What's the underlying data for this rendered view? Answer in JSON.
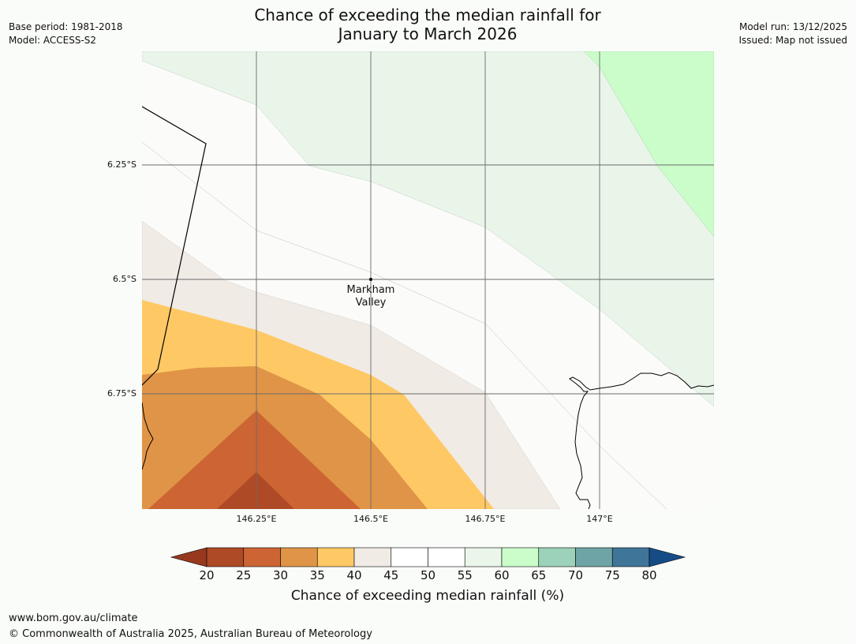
{
  "header": {
    "base_period": "Base period: 1981-2018",
    "model": "Model: ACCESS-S2",
    "model_run": "Model run: 13/12/2025",
    "issued": "Issued: Map not issued",
    "title_line1": "Chance of exceeding the median rainfall for",
    "title_line2": "January to March 2026"
  },
  "map": {
    "lat_labels": [
      "6.25°S",
      "6.5°S",
      "6.75°S"
    ],
    "lon_labels": [
      "146.25°E",
      "146.5°E",
      "146.75°E",
      "147°E"
    ],
    "place": {
      "line1": "Markham",
      "line2": "Valley"
    }
  },
  "colorbar": {
    "ticks": [
      "20",
      "25",
      "30",
      "35",
      "40",
      "45",
      "50",
      "55",
      "60",
      "65",
      "70",
      "75",
      "80"
    ],
    "colors": [
      "#ae4a25",
      "#cc6533",
      "#e09447",
      "#fec965",
      "#f1ebe5",
      "#ffffff",
      "#ffffff",
      "#ebf6eb",
      "#cbfdcb",
      "#9bd2b9",
      "#6ea4a5",
      "#3f7599"
    ],
    "under_color": "#98391f",
    "over_color": "#164c86",
    "label": "Chance of exceeding median rainfall (%)"
  },
  "footer": {
    "url": "www.bom.gov.au/climate",
    "copyright": "© Commonwealth of Australia 2025, Australian Bureau of Meteorology"
  }
}
